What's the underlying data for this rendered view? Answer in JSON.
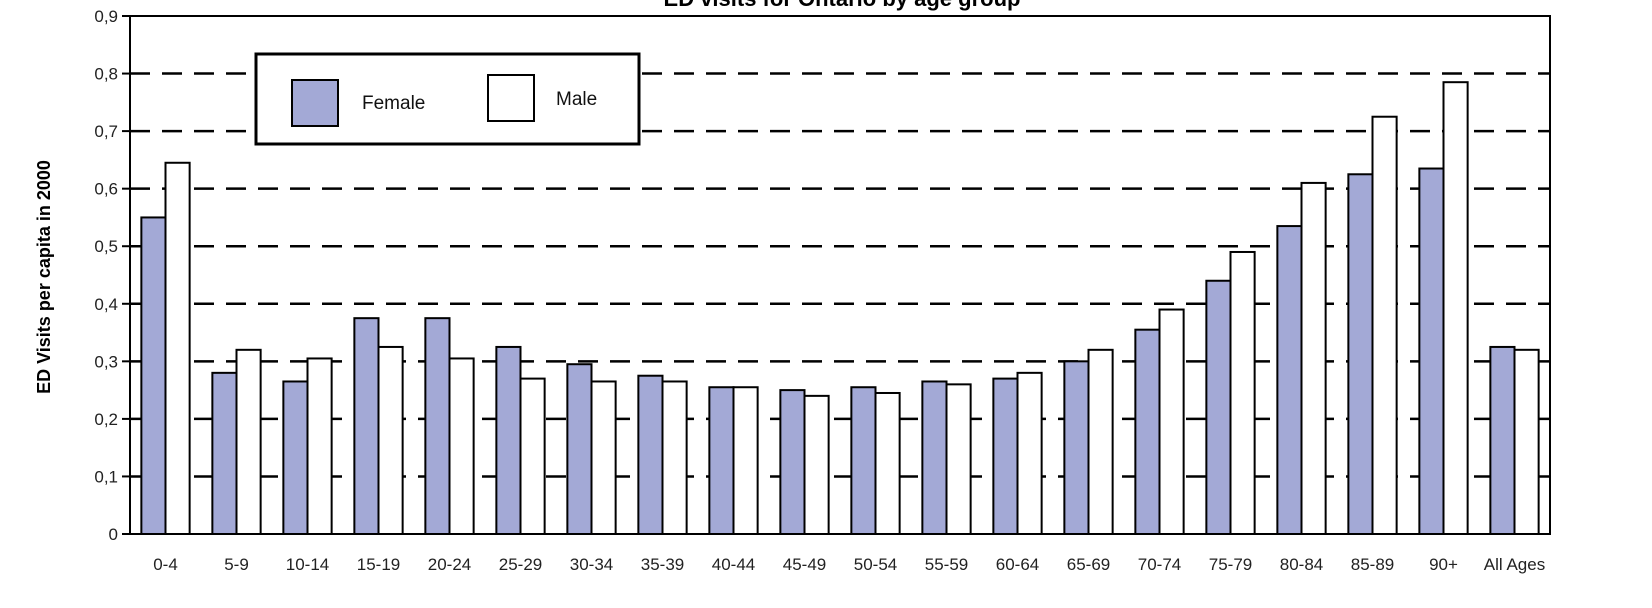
{
  "chart_data": {
    "type": "bar",
    "title": "ED visits for Ontario by age group",
    "ylabel": "ED Visits per capita in 2000",
    "xlabel": "",
    "categories": [
      "0-4",
      "5-9",
      "10-14",
      "15-19",
      "20-24",
      "25-29",
      "30-34",
      "35-39",
      "40-44",
      "45-49",
      "50-54",
      "55-59",
      "60-64",
      "65-69",
      "70-74",
      "75-79",
      "80-84",
      "85-89",
      "90+",
      "All Ages"
    ],
    "series": [
      {
        "name": "Female",
        "color": "#a3a9d6",
        "values": [
          0.55,
          0.28,
          0.265,
          0.375,
          0.375,
          0.325,
          0.295,
          0.275,
          0.255,
          0.25,
          0.255,
          0.265,
          0.27,
          0.3,
          0.355,
          0.44,
          0.535,
          0.625,
          0.635,
          0.325
        ]
      },
      {
        "name": "Male",
        "color": "#ffffff",
        "values": [
          0.645,
          0.32,
          0.305,
          0.325,
          0.305,
          0.27,
          0.265,
          0.265,
          0.255,
          0.24,
          0.245,
          0.26,
          0.28,
          0.32,
          0.39,
          0.49,
          0.61,
          0.725,
          0.785,
          0.32
        ]
      }
    ],
    "ylim": [
      0,
      0.9
    ],
    "yticks": [
      "0",
      "0,1",
      "0,2",
      "0,3",
      "0,4",
      "0,5",
      "0,6",
      "0,7",
      "0,8",
      "0,9"
    ],
    "grid": "dashed horizontal",
    "legend_position": "top-left"
  }
}
